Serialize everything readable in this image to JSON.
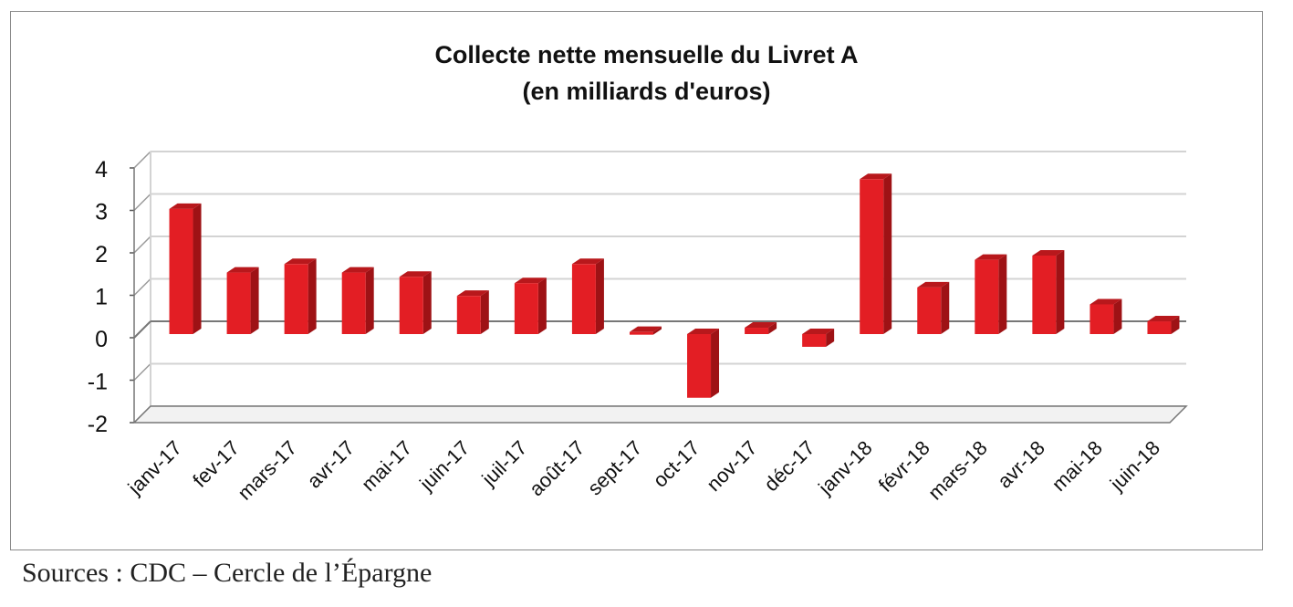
{
  "chart_data": {
    "type": "bar",
    "title": "Collecte nette mensuelle du Livret A",
    "subtitle": "(en milliards d'euros)",
    "categories": [
      "janv-17",
      "fev-17",
      "mars-17",
      "avr-17",
      "mai-17",
      "juin-17",
      "juil-17",
      "août-17",
      "sept-17",
      "oct-17",
      "nov-17",
      "déc-17",
      "janv-18",
      "févr-18",
      "mars-18",
      "avr-18",
      "mai-18",
      "juin-18"
    ],
    "values": [
      2.95,
      1.45,
      1.65,
      1.45,
      1.35,
      0.9,
      1.2,
      1.65,
      0.05,
      -1.5,
      0.15,
      -0.3,
      3.65,
      1.1,
      1.75,
      1.85,
      0.7,
      0.3
    ],
    "yticks": [
      4,
      3,
      2,
      1,
      0,
      -1,
      -2
    ],
    "ylim": [
      -2,
      4
    ],
    "grid": true,
    "bar_color": "#e31e24"
  },
  "source": "Sources : CDC – Cercle de l’Épargne"
}
